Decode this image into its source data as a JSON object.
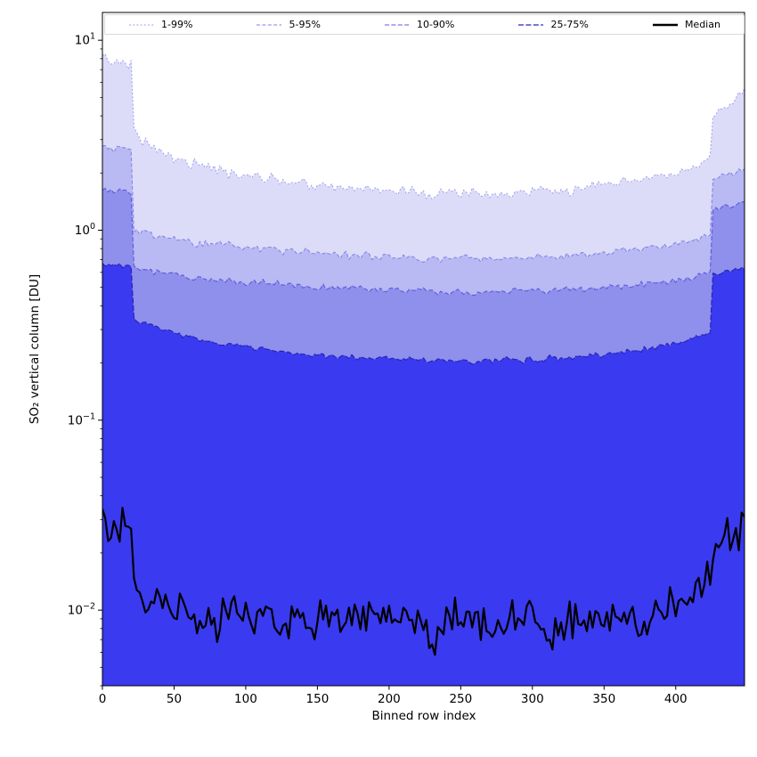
{
  "figure": {
    "xlabel": "Binned row index",
    "ylabel": "SO₂ vertical column [DU]",
    "background": "#ffffff",
    "frame_color": "#000000",
    "tick_color": "#000000"
  },
  "chart_data": {
    "type": "area",
    "title": "",
    "xlabel": "Binned row index",
    "ylabel": "SO₂ vertical column [DU]",
    "yscale": "log",
    "xlim": [
      0,
      448
    ],
    "ylim": [
      0.004,
      14
    ],
    "xticks": [
      0,
      50,
      100,
      150,
      200,
      250,
      300,
      350,
      400
    ],
    "ytick_exponents": [
      1,
      0,
      -1,
      -2
    ],
    "grid": false,
    "legend_position": "top-expanded",
    "x": [
      0,
      4,
      8,
      12,
      16,
      20,
      22,
      24,
      28,
      32,
      40,
      48,
      56,
      64,
      72,
      80,
      88,
      96,
      104,
      112,
      120,
      128,
      136,
      144,
      152,
      160,
      168,
      176,
      184,
      192,
      200,
      208,
      216,
      224,
      232,
      240,
      248,
      256,
      264,
      272,
      280,
      288,
      296,
      304,
      312,
      320,
      328,
      336,
      344,
      352,
      360,
      368,
      376,
      384,
      392,
      400,
      408,
      416,
      420,
      424,
      426,
      432,
      440,
      444,
      448
    ],
    "series": [
      {
        "name": "1-99%",
        "kind": "percentile-band-upper",
        "line_color": "#9f9fee",
        "fill_color": "#dcdcf8",
        "dash": "2 2.2",
        "line_width": 1,
        "legend_width": 1,
        "jitter": 0.014,
        "values": [
          8.3,
          7.8,
          7.5,
          7.9,
          7.6,
          7.4,
          3.4,
          3.2,
          3.0,
          2.85,
          2.6,
          2.45,
          2.35,
          2.25,
          2.15,
          2.08,
          2.0,
          1.96,
          1.92,
          1.9,
          1.86,
          1.82,
          1.8,
          1.76,
          1.73,
          1.7,
          1.68,
          1.66,
          1.64,
          1.67,
          1.63,
          1.6,
          1.58,
          1.56,
          1.53,
          1.58,
          1.55,
          1.6,
          1.56,
          1.52,
          1.55,
          1.59,
          1.56,
          1.61,
          1.59,
          1.64,
          1.62,
          1.67,
          1.69,
          1.72,
          1.75,
          1.79,
          1.84,
          1.89,
          1.94,
          2.0,
          2.08,
          2.18,
          2.25,
          2.35,
          3.9,
          4.3,
          4.7,
          5.0,
          5.6
        ]
      },
      {
        "name": "5-95%",
        "kind": "percentile-band-upper",
        "line_color": "#7f7fe8",
        "fill_color": "#b9b9f3",
        "dash": "4 2.4",
        "line_width": 1,
        "legend_width": 1,
        "jitter": 0.01,
        "values": [
          2.78,
          2.72,
          2.7,
          2.74,
          2.7,
          2.66,
          1.0,
          0.98,
          0.96,
          0.95,
          0.92,
          0.9,
          0.88,
          0.86,
          0.85,
          0.84,
          0.83,
          0.82,
          0.81,
          0.8,
          0.795,
          0.785,
          0.775,
          0.765,
          0.76,
          0.75,
          0.745,
          0.74,
          0.735,
          0.735,
          0.73,
          0.725,
          0.72,
          0.715,
          0.71,
          0.715,
          0.71,
          0.715,
          0.71,
          0.712,
          0.715,
          0.72,
          0.72,
          0.725,
          0.73,
          0.735,
          0.74,
          0.75,
          0.755,
          0.765,
          0.775,
          0.785,
          0.8,
          0.815,
          0.835,
          0.855,
          0.88,
          0.91,
          0.93,
          0.95,
          1.88,
          1.93,
          1.99,
          2.03,
          2.1
        ]
      },
      {
        "name": "10-90%",
        "kind": "percentile-band-upper",
        "line_color": "#5a5ae0",
        "fill_color": "#8f8fec",
        "dash": "5 2.4",
        "line_width": 1.1,
        "legend_width": 1.1,
        "jitter": 0.009,
        "values": [
          1.63,
          1.61,
          1.6,
          1.62,
          1.6,
          1.58,
          0.64,
          0.63,
          0.62,
          0.61,
          0.595,
          0.58,
          0.57,
          0.56,
          0.553,
          0.546,
          0.54,
          0.534,
          0.528,
          0.523,
          0.518,
          0.513,
          0.509,
          0.505,
          0.501,
          0.498,
          0.494,
          0.491,
          0.488,
          0.486,
          0.483,
          0.481,
          0.479,
          0.477,
          0.475,
          0.475,
          0.474,
          0.473,
          0.473,
          0.474,
          0.475,
          0.476,
          0.478,
          0.48,
          0.482,
          0.485,
          0.488,
          0.492,
          0.496,
          0.5,
          0.505,
          0.511,
          0.518,
          0.526,
          0.535,
          0.546,
          0.558,
          0.572,
          0.58,
          0.59,
          1.27,
          1.31,
          1.36,
          1.38,
          1.41
        ]
      },
      {
        "name": "25-75%",
        "kind": "percentile-band-upper",
        "line_color": "#2626b4",
        "fill_color": "#3a3af0",
        "dash": "6 2.4",
        "line_width": 1.2,
        "legend_width": 1.3,
        "jitter": 0.008,
        "values": [
          0.67,
          0.66,
          0.655,
          0.66,
          0.655,
          0.65,
          0.345,
          0.34,
          0.33,
          0.322,
          0.305,
          0.292,
          0.281,
          0.271,
          0.263,
          0.256,
          0.25,
          0.245,
          0.24,
          0.236,
          0.232,
          0.229,
          0.226,
          0.223,
          0.221,
          0.218,
          0.216,
          0.214,
          0.213,
          0.211,
          0.21,
          0.209,
          0.208,
          0.207,
          0.206,
          0.206,
          0.205,
          0.205,
          0.205,
          0.206,
          0.206,
          0.207,
          0.208,
          0.209,
          0.211,
          0.213,
          0.215,
          0.217,
          0.22,
          0.223,
          0.227,
          0.231,
          0.236,
          0.241,
          0.247,
          0.254,
          0.262,
          0.272,
          0.278,
          0.284,
          0.585,
          0.6,
          0.615,
          0.625,
          0.635
        ]
      },
      {
        "name": "Median",
        "kind": "median-line",
        "line_color": "#000000",
        "fill_color": null,
        "dash": "",
        "line_width": 2.2,
        "legend_width": 2.5,
        "jitter": 0.052,
        "values": [
          0.034,
          0.027,
          0.031,
          0.026,
          0.03,
          0.024,
          0.014,
          0.012,
          0.011,
          0.0115,
          0.0105,
          0.0096,
          0.0102,
          0.0089,
          0.0094,
          0.0086,
          0.0097,
          0.0091,
          0.0083,
          0.0094,
          0.0088,
          0.0079,
          0.0093,
          0.0086,
          0.0091,
          0.0096,
          0.0084,
          0.0095,
          0.0089,
          0.0099,
          0.0093,
          0.0086,
          0.0094,
          0.0079,
          0.0066,
          0.0091,
          0.0088,
          0.0096,
          0.0083,
          0.0076,
          0.009,
          0.0086,
          0.0093,
          0.0087,
          0.0064,
          0.0081,
          0.009,
          0.0085,
          0.0092,
          0.0088,
          0.0082,
          0.0091,
          0.0077,
          0.0086,
          0.0094,
          0.0103,
          0.0112,
          0.0128,
          0.0138,
          0.0152,
          0.0165,
          0.021,
          0.027,
          0.024,
          0.031
        ]
      }
    ]
  }
}
